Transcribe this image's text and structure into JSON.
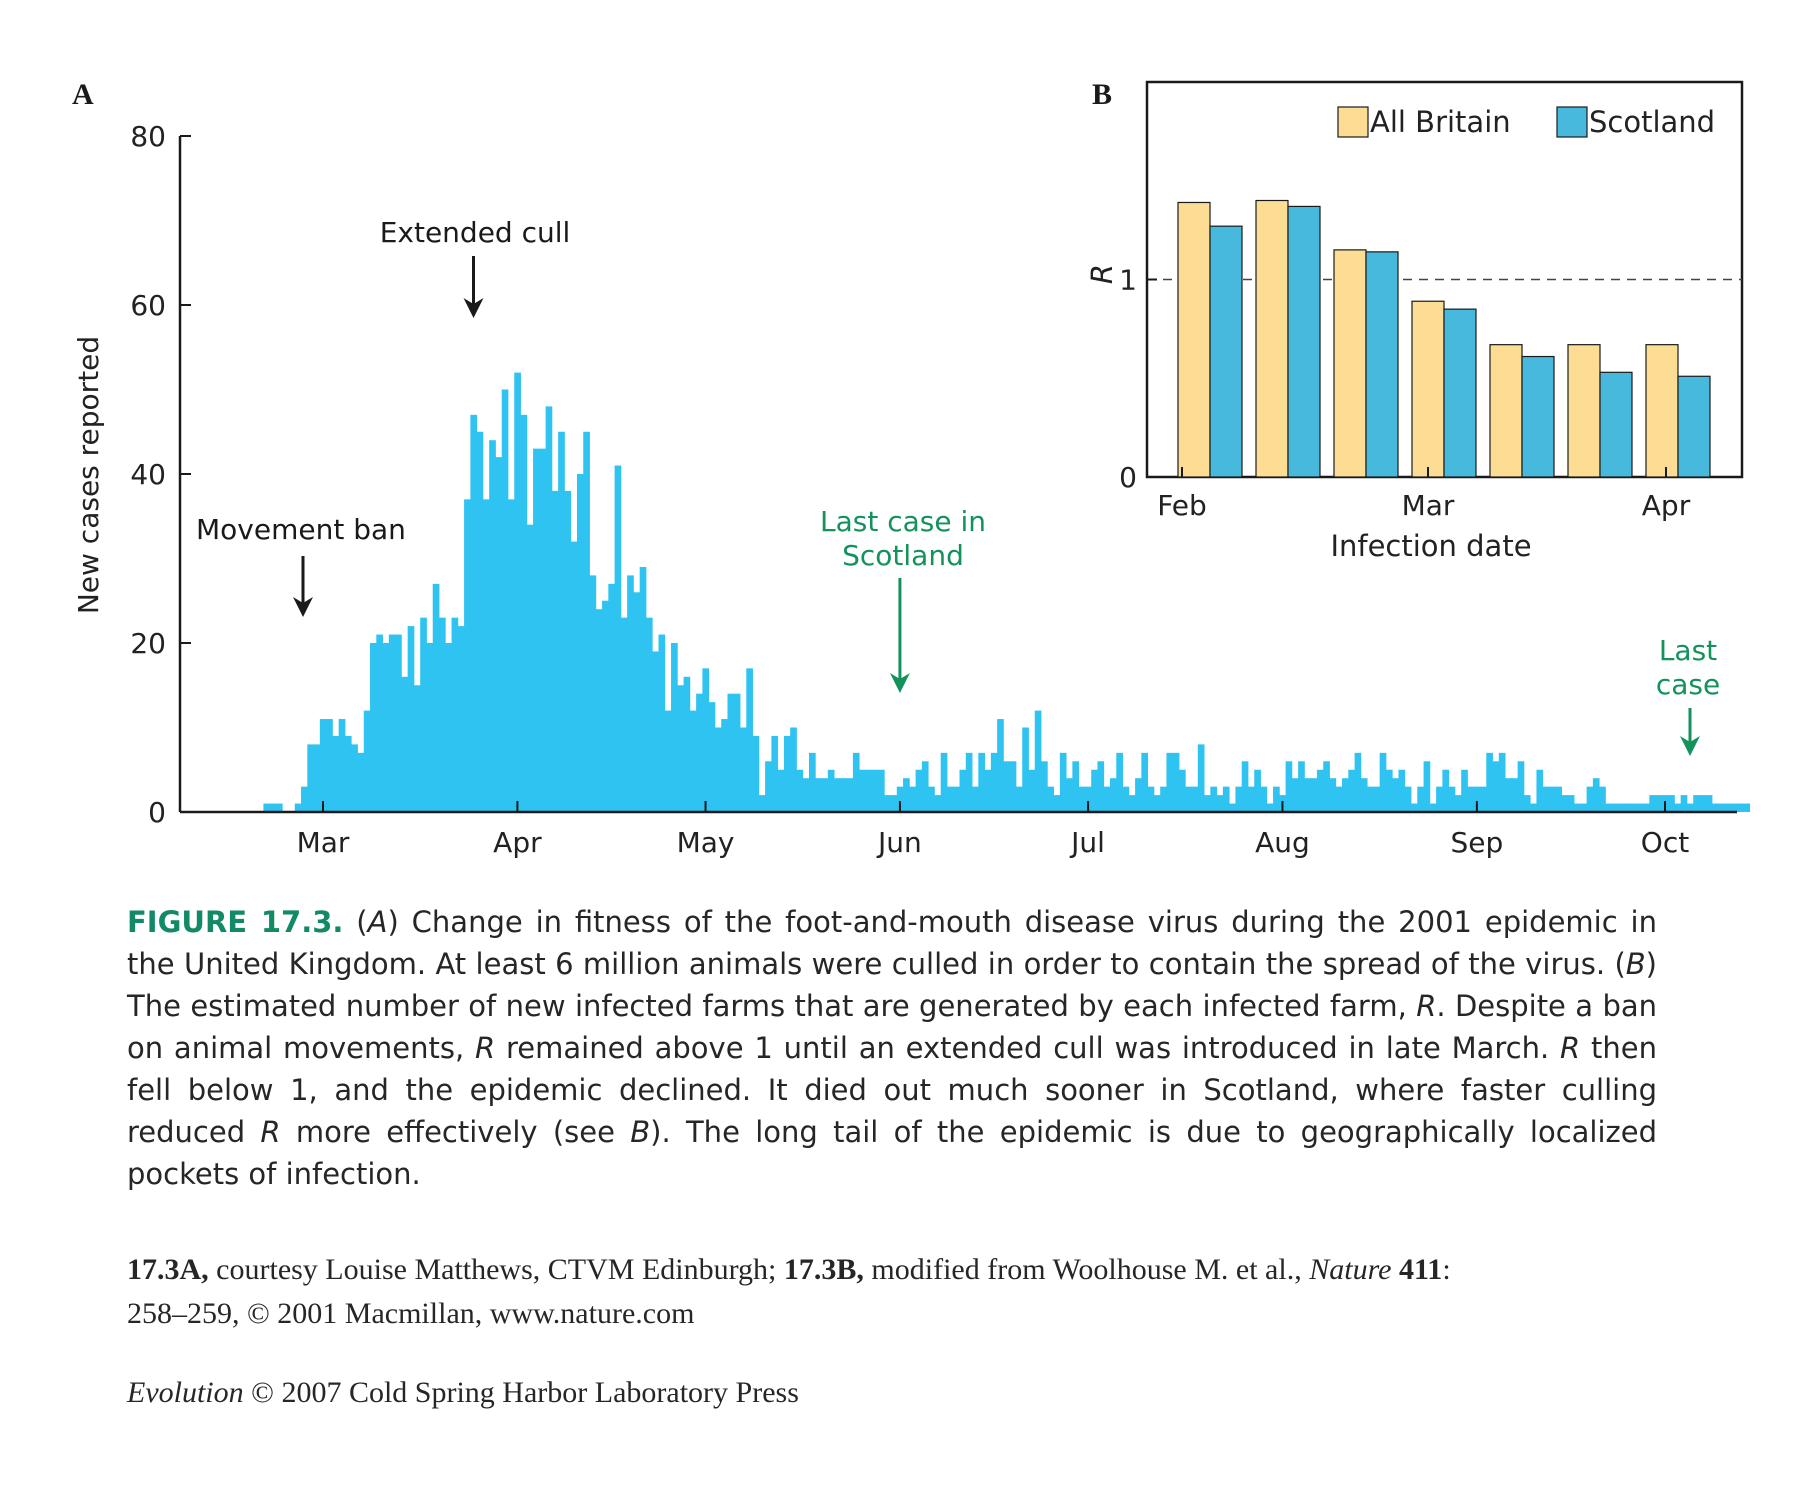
{
  "panel_a_letter": "A",
  "panel_b_letter": "B",
  "chart_data": [
    {
      "type": "bar",
      "panel": "A",
      "ylabel": "New cases reported",
      "ylim": [
        0,
        80
      ],
      "yticks": [
        0,
        20,
        40,
        60,
        80
      ],
      "x_month_labels": [
        "Mar",
        "Apr",
        "May",
        "Jun",
        "Jul",
        "Aug",
        "Sep",
        "Oct"
      ],
      "x_month_positions": [
        0,
        31,
        61,
        92,
        122,
        153,
        184,
        214
      ],
      "x_unit": "days since 1 March 2001",
      "x_start": -9,
      "values": [
        1,
        1,
        1,
        0,
        0,
        1,
        3,
        8,
        8,
        11,
        11,
        9,
        11,
        9,
        8,
        7,
        12,
        20,
        21,
        20,
        21,
        21,
        16,
        22,
        15,
        23,
        20,
        27,
        23,
        20,
        23,
        22,
        37,
        47,
        45,
        37,
        44,
        42,
        50,
        37,
        52,
        47,
        34,
        43,
        43,
        48,
        38,
        45,
        38,
        32,
        40,
        45,
        28,
        24,
        25,
        27,
        41,
        23,
        28,
        26,
        29,
        23,
        19,
        21,
        12,
        20,
        15,
        16,
        12,
        14,
        17,
        13,
        10,
        11,
        14,
        14,
        10,
        17,
        9,
        2,
        6,
        9,
        5,
        9,
        10,
        5,
        4,
        7,
        4,
        4,
        5,
        4,
        4,
        4,
        7,
        5,
        5,
        5,
        5,
        2,
        2,
        3,
        4,
        3,
        5,
        6,
        3,
        2,
        7,
        3,
        3,
        5,
        7,
        3,
        7,
        5,
        7,
        11,
        6,
        6,
        3,
        10,
        5,
        12,
        6,
        3,
        2,
        7,
        4,
        6,
        3,
        3,
        5,
        6,
        3,
        4,
        7,
        3,
        2,
        4,
        7,
        3,
        2,
        3,
        7,
        7,
        5,
        3,
        3,
        8,
        2,
        3,
        2,
        3,
        1,
        3,
        6,
        3,
        5,
        3,
        1,
        3,
        2,
        6,
        4,
        6,
        4,
        4,
        5,
        6,
        4,
        3,
        4,
        5,
        7,
        4,
        3,
        3,
        7,
        5,
        4,
        5,
        3,
        1,
        3,
        6,
        1,
        3,
        5,
        3,
        2,
        5,
        3,
        3,
        3,
        7,
        6,
        7,
        4,
        4,
        6,
        2,
        1,
        5,
        3,
        3,
        3,
        2,
        2,
        1,
        1,
        3,
        4,
        3,
        1,
        1,
        1,
        1,
        1,
        1,
        1,
        2,
        2,
        2,
        2,
        1,
        2,
        1,
        2,
        2,
        2,
        1,
        1,
        1,
        1,
        1,
        1
      ],
      "annotations": [
        {
          "label": "Extended cull",
          "day": 24,
          "color": "#1a1a1a"
        },
        {
          "label": "Movement ban",
          "day": -3,
          "color": "#1a1a1a"
        },
        {
          "label": "Last case in Scotland",
          "day": 92,
          "color": "#13925c"
        },
        {
          "label": "Last case",
          "day": 217,
          "color": "#13925c"
        }
      ],
      "bar_color": "#2ec3f0"
    },
    {
      "type": "bar",
      "panel": "B",
      "title": "",
      "xlabel": "Infection date",
      "ylabel": "R",
      "ylim": [
        0,
        2
      ],
      "yticks": [
        0,
        1
      ],
      "x_tick_labels": [
        "Feb",
        "Mar",
        "Apr"
      ],
      "x_tick_group_index": [
        0,
        3,
        6
      ],
      "reference_line": 1,
      "series": [
        {
          "name": "All Britain",
          "color": "#fddc94",
          "values": [
            1.39,
            1.4,
            1.15,
            0.89,
            0.67,
            0.67,
            0.67
          ]
        },
        {
          "name": "Scotland",
          "color": "#46b9dc",
          "values": [
            1.27,
            1.37,
            1.14,
            0.85,
            0.61,
            0.53,
            0.51
          ]
        }
      ],
      "legend_position": "top-right"
    }
  ],
  "caption": {
    "lead": "FIGURE 17.3.",
    "text_1": " (",
    "a_label": "A",
    "text_2": ") Change in fitness of the foot-and-mouth disease virus during the 2001 epidemic in the United Kingdom. At least 6 million animals were culled in order to contain the spread of the virus. (",
    "b_label": "B",
    "text_3": ") The estimated number of new infected farms that are generated by each infected farm, ",
    "r1": "R",
    "text_4": ". Despite a ban on animal movements, ",
    "r2": "R",
    "text_5": " remained above 1 until an extended cull was introduced in late March. ",
    "r3": "R",
    "text_6": " then fell below 1, and the epidemic declined. It died out much sooner in Scotland, where faster culling reduced ",
    "r4": "R",
    "text_7": " more effectively (see ",
    "b_label_2": "B",
    "text_8": "). The long tail of the epidemic is due to geographically localized pockets of infection."
  },
  "credits": {
    "a_ref": "17.3A,",
    "a_text": " courtesy Louise Matthews, CTVM Edinburgh; ",
    "b_ref": "17.3B,",
    "b_text": " modified from Woolhouse M. et al., ",
    "journal": "Nature",
    "volume": " 411",
    "colon": ":",
    "pages": " 258–259, © 2001 Macmillan, www.nature.com"
  },
  "publisher": {
    "book": "Evolution",
    "text": " © 2007 Cold Spring Harbor Laboratory Press"
  }
}
